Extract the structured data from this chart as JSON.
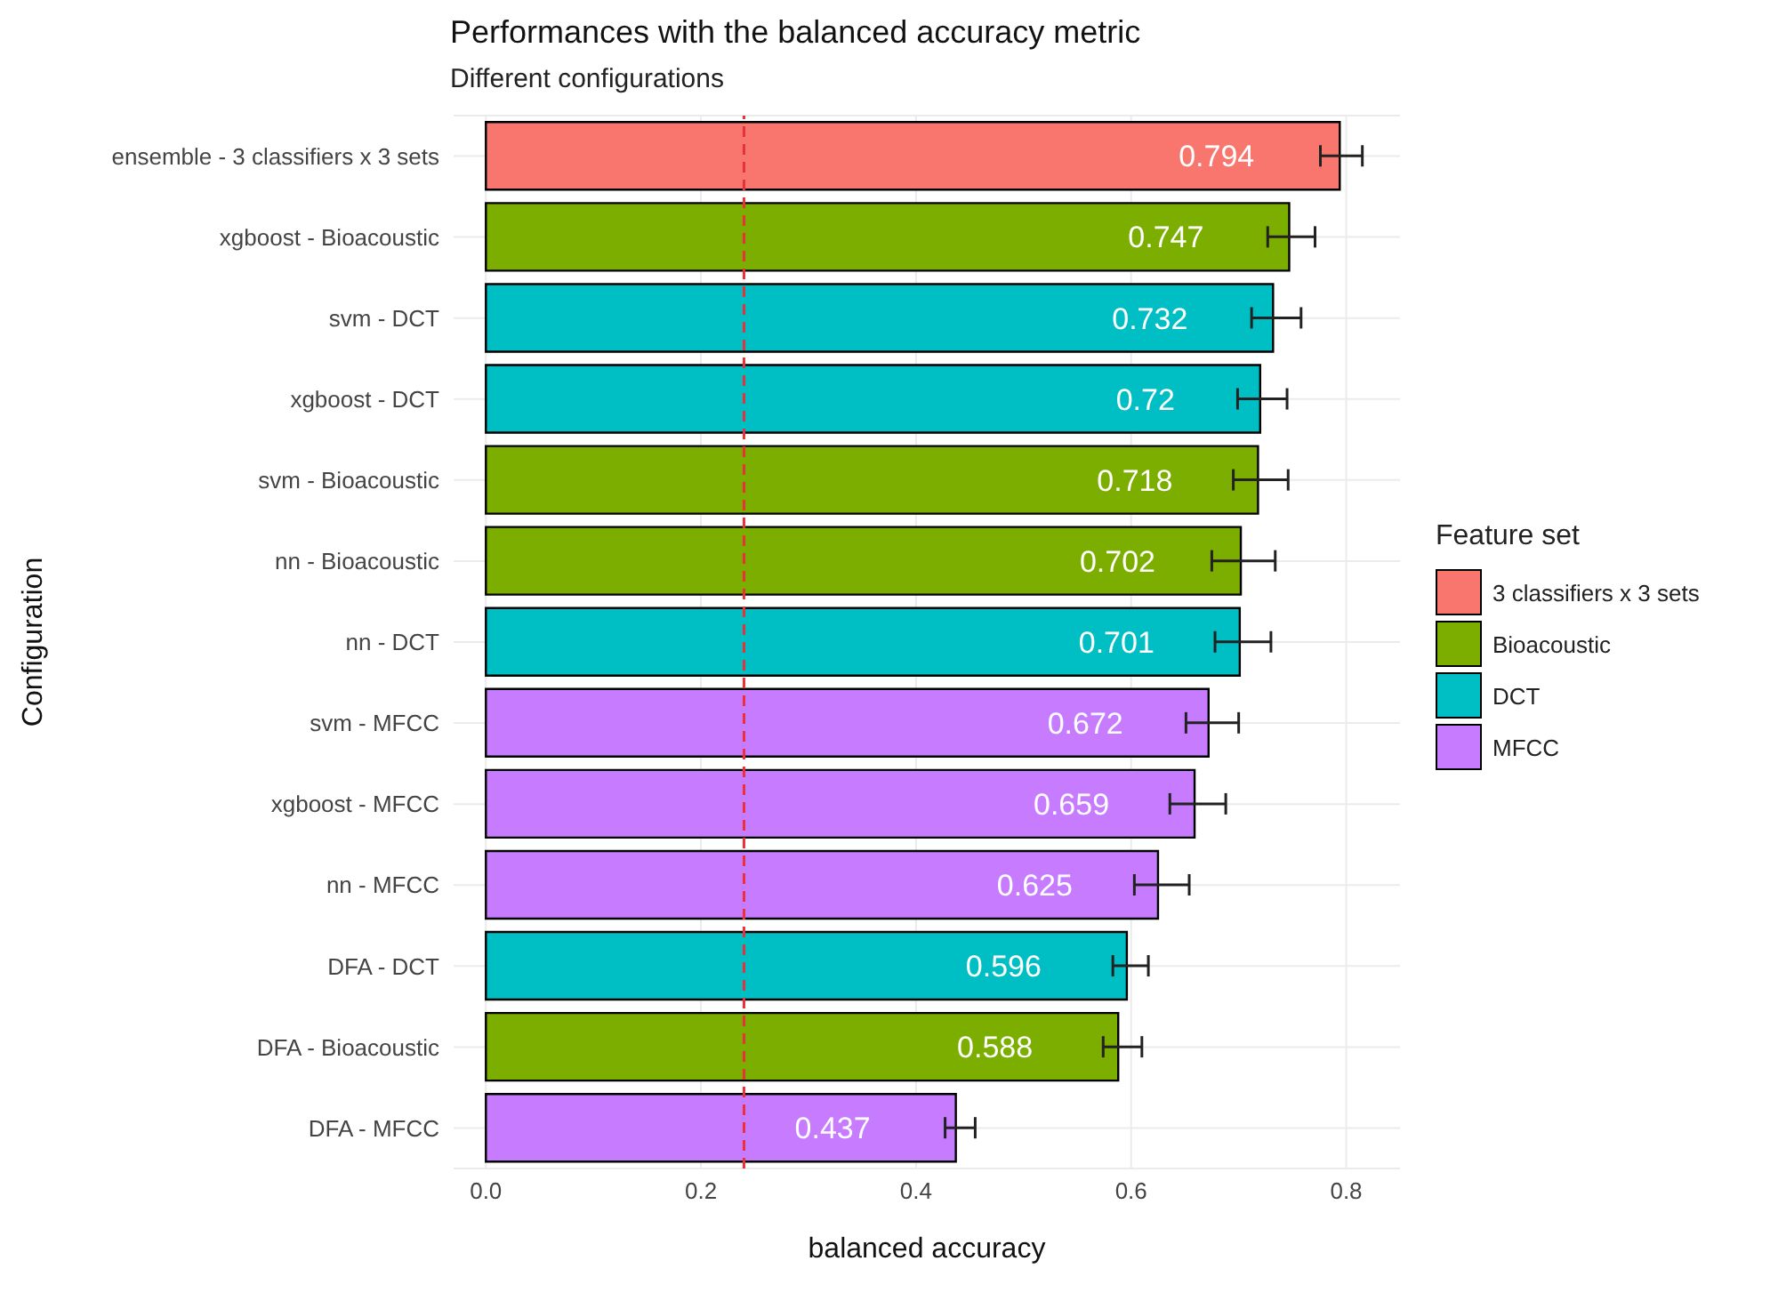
{
  "chart_data": {
    "type": "bar",
    "orientation": "horizontal",
    "stacked": true,
    "title": "Performances with the balanced accuracy metric",
    "subtitle": "Different configurations",
    "xlabel": "balanced accuracy",
    "ylabel": "Configuration",
    "legend_title": "Feature set",
    "legend": "right",
    "grid": true,
    "data_labels": true,
    "categories": [
      "ensemble - 3 classifiers x 3 sets",
      "xgboost - Bioacoustic",
      "svm - DCT",
      "xgboost - DCT",
      "svm - Bioacoustic",
      "nn - Bioacoustic",
      "nn - DCT",
      "svm - MFCC",
      "xgboost - MFCC",
      "nn - MFCC",
      "DFA - DCT",
      "DFA - Bioacoustic",
      "DFA - MFCC"
    ],
    "xlim": [
      -0.03,
      0.85
    ],
    "xticks": [
      {
        "value": 0,
        "label": "0.0"
      },
      0.2,
      0.4,
      0.6,
      0.8
    ],
    "ref_lines": [
      {
        "axis": "x",
        "value": 0.24,
        "color": "#e8313a",
        "line_style": "dashed"
      }
    ],
    "series": [
      {
        "name": "3 classifiers x 3 sets",
        "color": "#f8766d",
        "values": [
          0.794,
          null,
          null,
          null,
          null,
          null,
          null,
          null,
          null,
          null,
          null,
          null,
          null
        ],
        "errors": [
          [
            0.776,
            0.815
          ],
          null,
          null,
          null,
          null,
          null,
          null,
          null,
          null,
          null,
          null,
          null,
          null
        ]
      },
      {
        "name": "Bioacoustic",
        "color": "#7cae00",
        "values": [
          null,
          0.747,
          null,
          null,
          0.718,
          0.702,
          null,
          null,
          null,
          null,
          null,
          0.588,
          null
        ],
        "errors": [
          null,
          [
            0.727,
            0.771
          ],
          null,
          null,
          [
            0.695,
            0.746
          ],
          [
            0.675,
            0.734
          ],
          null,
          null,
          null,
          null,
          null,
          [
            0.574,
            0.61
          ],
          null
        ]
      },
      {
        "name": "DCT",
        "color": "#00bfc4",
        "values": [
          null,
          null,
          0.732,
          0.72,
          null,
          null,
          0.701,
          null,
          null,
          null,
          0.596,
          null,
          null
        ],
        "errors": [
          null,
          null,
          [
            0.712,
            0.758
          ],
          [
            0.699,
            0.745
          ],
          null,
          null,
          [
            0.678,
            0.73
          ],
          null,
          null,
          null,
          [
            0.583,
            0.616
          ],
          null,
          null
        ]
      },
      {
        "name": "MFCC",
        "color": "#c77cff",
        "values": [
          null,
          null,
          null,
          null,
          null,
          null,
          null,
          0.672,
          0.659,
          0.625,
          null,
          null,
          0.437
        ],
        "errors": [
          null,
          null,
          null,
          null,
          null,
          null,
          null,
          [
            0.651,
            0.7
          ],
          [
            0.636,
            0.688
          ],
          [
            0.603,
            0.654
          ],
          null,
          null,
          [
            0.427,
            0.455
          ]
        ]
      }
    ]
  }
}
